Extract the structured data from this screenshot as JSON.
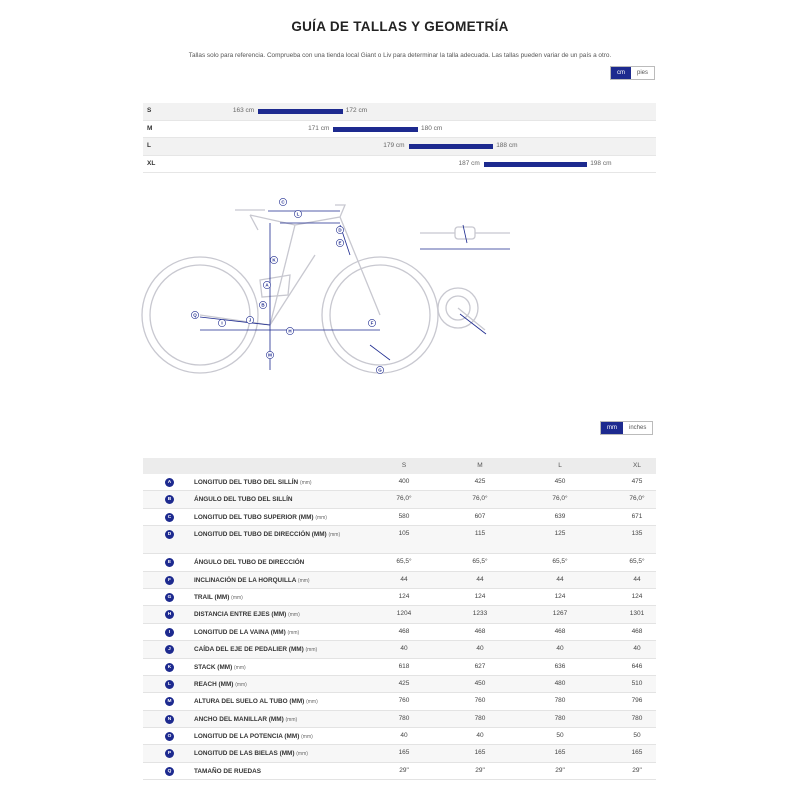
{
  "title": "GUÍA DE TALLAS Y GEOMETRÍA",
  "subtitle": "Tallas solo para referencia. Comprueba con una tienda local Giant o Liv para determinar la talla adecuada. Las tallas pueden variar de un país a otro.",
  "size_units": {
    "active": "cm",
    "other": "pies"
  },
  "geo_units": {
    "active": "mm",
    "other": "inches"
  },
  "sizes": [
    {
      "label": "S",
      "min": "163 cm",
      "max": "172 cm",
      "min_cm": 163,
      "max_cm": 172
    },
    {
      "label": "M",
      "min": "171 cm",
      "max": "180 cm",
      "min_cm": 171,
      "max_cm": 180
    },
    {
      "label": "L",
      "min": "179 cm",
      "max": "188 cm",
      "min_cm": 179,
      "max_cm": 188
    },
    {
      "label": "XL",
      "min": "187 cm",
      "max": "198 cm",
      "min_cm": 187,
      "max_cm": 198
    }
  ],
  "diagram_letters": [
    "A",
    "B",
    "C",
    "D",
    "E",
    "F",
    "G",
    "H",
    "I",
    "J",
    "K",
    "L",
    "M",
    "N",
    "O",
    "P",
    "Q"
  ],
  "geo_headers": [
    "S",
    "M",
    "L",
    "XL"
  ],
  "geometry": [
    {
      "letter": "A",
      "label": "LONGITUD DEL TUBO DEL SILLÍN",
      "unit": "(mm)",
      "values": [
        "400",
        "425",
        "450",
        "475"
      ]
    },
    {
      "letter": "B",
      "label": "ÁNGULO DEL TUBO DEL SILLÍN",
      "unit": "",
      "values": [
        "76,0°",
        "76,0°",
        "76,0°",
        "76,0°"
      ]
    },
    {
      "letter": "C",
      "label": "LONGITUD DEL TUBO SUPERIOR (MM)",
      "unit": "(mm)",
      "values": [
        "580",
        "607",
        "639",
        "671"
      ]
    },
    {
      "letter": "D",
      "label": "LONGITUD DEL TUBO DE DIRECCIÓN (MM)",
      "unit": "(mm)",
      "values": [
        "105",
        "115",
        "125",
        "135"
      ],
      "tall": true
    },
    {
      "letter": "E",
      "label": "ÁNGULO DEL TUBO DE DIRECCIÓN",
      "unit": "",
      "values": [
        "65,5°",
        "65,5°",
        "65,5°",
        "65,5°"
      ]
    },
    {
      "letter": "F",
      "label": "INCLINACIÓN DE LA HORQUILLA",
      "unit": "(mm)",
      "values": [
        "44",
        "44",
        "44",
        "44"
      ]
    },
    {
      "letter": "G",
      "label": "TRAIL (MM)",
      "unit": "(mm)",
      "values": [
        "124",
        "124",
        "124",
        "124"
      ]
    },
    {
      "letter": "H",
      "label": "DISTANCIA ENTRE EJES (MM)",
      "unit": "(mm)",
      "values": [
        "1204",
        "1233",
        "1267",
        "1301"
      ]
    },
    {
      "letter": "I",
      "label": "LONGITUD DE LA VAINA (MM)",
      "unit": "(mm)",
      "values": [
        "468",
        "468",
        "468",
        "468"
      ]
    },
    {
      "letter": "J",
      "label": "CAÍDA DEL EJE DE PEDALIER (MM)",
      "unit": "(mm)",
      "values": [
        "40",
        "40",
        "40",
        "40"
      ]
    },
    {
      "letter": "K",
      "label": "STACK (MM)",
      "unit": "(mm)",
      "values": [
        "618",
        "627",
        "636",
        "646"
      ]
    },
    {
      "letter": "L",
      "label": "REACH (MM)",
      "unit": "(mm)",
      "values": [
        "425",
        "450",
        "480",
        "510"
      ]
    },
    {
      "letter": "M",
      "label": "ALTURA DEL SUELO AL TUBO (MM)",
      "unit": "(mm)",
      "values": [
        "760",
        "760",
        "780",
        "796"
      ]
    },
    {
      "letter": "N",
      "label": "ANCHO DEL MANILLAR (MM)",
      "unit": "(mm)",
      "values": [
        "780",
        "780",
        "780",
        "780"
      ]
    },
    {
      "letter": "O",
      "label": "LONGITUD DE LA POTENCIA (MM)",
      "unit": "(mm)",
      "values": [
        "40",
        "40",
        "50",
        "50"
      ]
    },
    {
      "letter": "P",
      "label": "LONGITUD DE LAS BIELAS (MM)",
      "unit": "(mm)",
      "values": [
        "165",
        "165",
        "165",
        "165"
      ]
    },
    {
      "letter": "Q",
      "label": "TAMAÑO DE RUEDAS",
      "unit": "",
      "values": [
        "29\"",
        "29\"",
        "29\"",
        "29\""
      ]
    }
  ]
}
